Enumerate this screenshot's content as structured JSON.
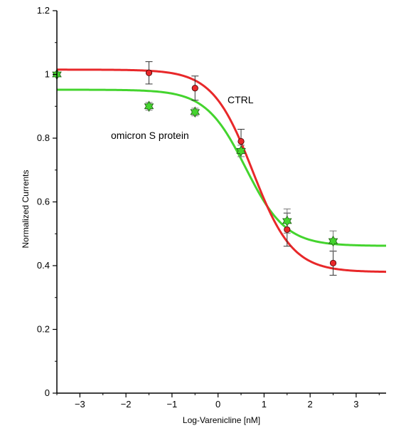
{
  "chart_data": {
    "type": "scatter",
    "xlabel": "Log-Varenicline [nM]",
    "ylabel": "Normalized Currents",
    "xlim": [
      -3.5,
      3.65
    ],
    "ylim": [
      0,
      1.2
    ],
    "x_ticks": [
      -3,
      -2,
      -1,
      0,
      1,
      2,
      3
    ],
    "x_tick_labels": [
      "−3",
      "−2",
      "−1",
      "0",
      "1",
      "2",
      "3"
    ],
    "y_ticks": [
      0,
      0.2,
      0.4,
      0.6,
      0.8,
      1,
      1.2
    ],
    "y_tick_labels": [
      "0",
      "0.2",
      "0.4",
      "0.6",
      "0.8",
      "1",
      "1.2"
    ],
    "grid": false,
    "annotations": [
      {
        "text": "CTRL",
        "series": "CTRL"
      },
      {
        "text": "omicron S protein",
        "series": "omicron S protein"
      }
    ],
    "series": [
      {
        "name": "CTRL",
        "color": "#e8282a",
        "marker": "circle",
        "points": [
          {
            "x": -1.5,
            "y": 1.005,
            "err": 0.035
          },
          {
            "x": -0.5,
            "y": 0.957,
            "err": 0.038
          },
          {
            "x": 0.5,
            "y": 0.79,
            "err": 0.038
          },
          {
            "x": 1.5,
            "y": 0.513,
            "err": 0.052
          },
          {
            "x": 2.5,
            "y": 0.408,
            "err": 0.038
          }
        ],
        "fit": {
          "top": 1.015,
          "bottom": 0.38,
          "logEC50": 0.75,
          "hill": 1.0
        }
      },
      {
        "name": "omicron S protein",
        "color": "#44d42e",
        "marker": "star",
        "points": [
          {
            "x": -3.5,
            "y": 1.0,
            "err": 0.0
          },
          {
            "x": -1.5,
            "y": 0.9,
            "err": 0.012
          },
          {
            "x": -0.5,
            "y": 0.882,
            "err": 0.012
          },
          {
            "x": 0.5,
            "y": 0.76,
            "err": 0.018
          },
          {
            "x": 1.5,
            "y": 0.54,
            "err": 0.038
          },
          {
            "x": 2.5,
            "y": 0.477,
            "err": 0.032
          }
        ],
        "fit": {
          "top": 0.952,
          "bottom": 0.462,
          "logEC50": 0.6,
          "hill": 1.0
        }
      }
    ]
  }
}
